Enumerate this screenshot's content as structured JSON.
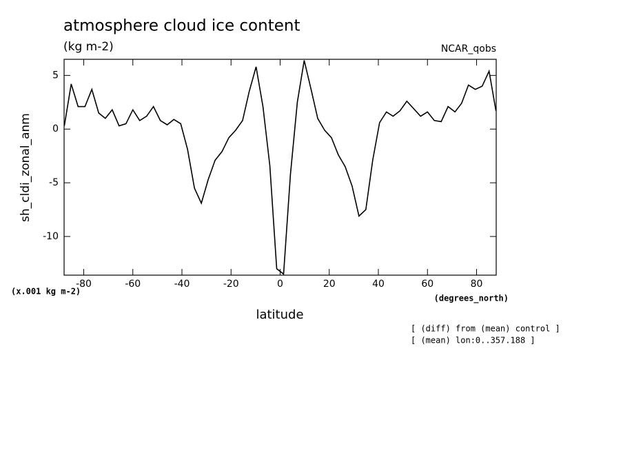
{
  "chart_data": {
    "type": "line",
    "title": "atmosphere cloud ice content",
    "subtitle": "(kg m-2)",
    "source": "NCAR_qobs",
    "y_label": "sh_cldi_zonal_anm",
    "y_units": "(x.001 kg m-2)",
    "x_label": "latitude",
    "x_units": "(degrees_north)",
    "annotations": [
      "[ (diff) from (mean) control ]",
      "[ (mean) lon:0..357.188 ]"
    ],
    "x": [
      -87.9,
      -85.1,
      -82.3,
      -79.5,
      -76.7,
      -73.9,
      -71.2,
      -68.4,
      -65.6,
      -62.8,
      -60.0,
      -57.2,
      -54.4,
      -51.6,
      -48.8,
      -46.0,
      -43.3,
      -40.5,
      -37.7,
      -34.9,
      -32.1,
      -29.3,
      -26.5,
      -23.7,
      -20.9,
      -18.1,
      -15.3,
      -12.6,
      -9.8,
      -7.0,
      -4.2,
      -1.4,
      1.4,
      4.2,
      7.0,
      9.8,
      12.6,
      15.3,
      18.1,
      20.9,
      23.7,
      26.5,
      29.3,
      32.1,
      34.9,
      37.7,
      40.5,
      43.3,
      46.0,
      48.8,
      51.6,
      54.4,
      57.2,
      60.0,
      62.8,
      65.6,
      68.4,
      71.2,
      73.9,
      76.7,
      79.5,
      82.3,
      85.1,
      87.9
    ],
    "series": [
      {
        "color": "#000000",
        "values": [
          0.3,
          4.2,
          2.1,
          2.1,
          3.7,
          1.5,
          1.0,
          1.8,
          0.3,
          0.5,
          1.8,
          0.8,
          1.2,
          2.1,
          0.8,
          0.4,
          0.9,
          0.5,
          -1.9,
          -5.5,
          -6.9,
          -4.7,
          -2.9,
          -2.1,
          -0.8,
          -0.1,
          0.8,
          3.5,
          5.8,
          2.1,
          -3.4,
          -13.0,
          -13.5,
          -4.2,
          2.5,
          6.4,
          3.7,
          1.0,
          -0.1,
          -0.8,
          -2.4,
          -3.5,
          -5.3,
          -8.1,
          -7.5,
          -2.9,
          0.6,
          1.6,
          1.2,
          1.7,
          2.6,
          1.9,
          1.2,
          1.6,
          0.8,
          0.7,
          2.1,
          1.6,
          2.4,
          4.1,
          3.7,
          4.0,
          5.4,
          1.7
        ]
      }
    ],
    "xlim": [
      -88,
      88
    ],
    "ylim": [
      -13.6,
      6.5
    ],
    "xticks": [
      -80,
      -60,
      -40,
      -20,
      0,
      20,
      40,
      60,
      80
    ],
    "yticks": [
      -10,
      -5,
      0,
      5
    ]
  }
}
